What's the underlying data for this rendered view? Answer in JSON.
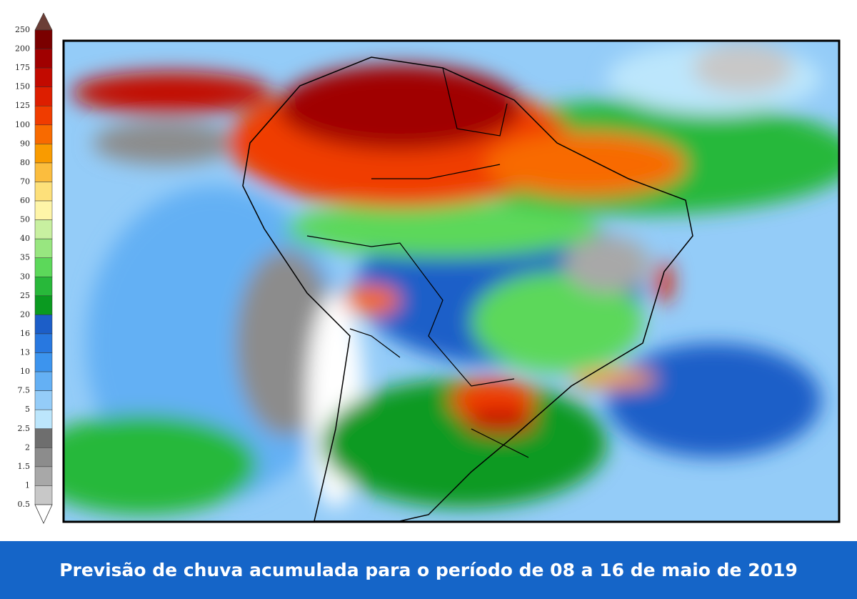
{
  "legend": {
    "ticks": [
      "250",
      "200",
      "175",
      "150",
      "125",
      "100",
      "90",
      "80",
      "70",
      "60",
      "50",
      "40",
      "35",
      "30",
      "25",
      "20",
      "16",
      "13",
      "10",
      "7.5",
      "5",
      "2.5",
      "2",
      "1.5",
      "1",
      "0.5"
    ],
    "colors": [
      "#6b3e36",
      "#7a0000",
      "#a00000",
      "#c20a00",
      "#dd1e00",
      "#f03c00",
      "#f86a00",
      "#f99b00",
      "#fbbd3e",
      "#fde07a",
      "#fef5a8",
      "#c8f0a0",
      "#98e680",
      "#5cd85a",
      "#28b83a",
      "#0a9a20",
      "#1c5ec8",
      "#2878e0",
      "#3c94ee",
      "#64b0f4",
      "#94ccf8",
      "#bce6fc",
      "#6e6e6e",
      "#8c8c8c",
      "#a8a8a8",
      "#c8c8c8",
      "#ffffff"
    ]
  },
  "caption": "Previsão de chuva acumulada para o período de 08 a 16 de maio de 2019"
}
